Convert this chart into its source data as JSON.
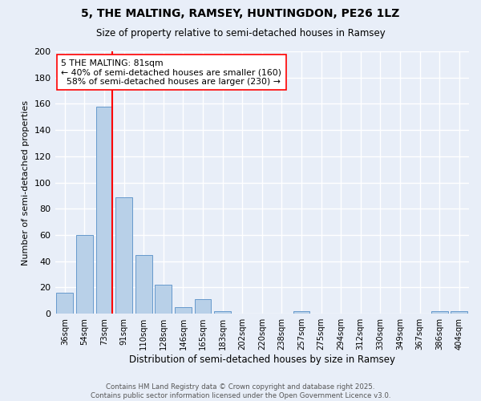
{
  "title1": "5, THE MALTING, RAMSEY, HUNTINGDON, PE26 1LZ",
  "title2": "Size of property relative to semi-detached houses in Ramsey",
  "xlabel": "Distribution of semi-detached houses by size in Ramsey",
  "ylabel": "Number of semi-detached properties",
  "bar_labels": [
    "36sqm",
    "54sqm",
    "73sqm",
    "91sqm",
    "110sqm",
    "128sqm",
    "146sqm",
    "165sqm",
    "183sqm",
    "202sqm",
    "220sqm",
    "238sqm",
    "257sqm",
    "275sqm",
    "294sqm",
    "312sqm",
    "330sqm",
    "349sqm",
    "367sqm",
    "386sqm",
    "404sqm"
  ],
  "bar_values": [
    16,
    60,
    158,
    89,
    45,
    22,
    5,
    11,
    2,
    0,
    0,
    0,
    2,
    0,
    0,
    0,
    0,
    0,
    0,
    2,
    2
  ],
  "bar_color": "#b8d0e8",
  "bar_edge_color": "#6699cc",
  "background_color": "#e8eef8",
  "grid_color": "#ffffff",
  "property_label": "5 THE MALTING: 81sqm",
  "pct_smaller": 40,
  "pct_larger": 58,
  "count_smaller": 160,
  "count_larger": 230,
  "ylim": [
    0,
    200
  ],
  "yticks": [
    0,
    20,
    40,
    60,
    80,
    100,
    120,
    140,
    160,
    180,
    200
  ],
  "footer1": "Contains HM Land Registry data © Crown copyright and database right 2025.",
  "footer2": "Contains public sector information licensed under the Open Government Licence v3.0."
}
